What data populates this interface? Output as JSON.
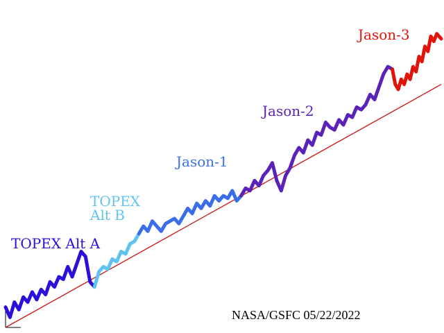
{
  "chart_data": {
    "type": "line",
    "title": "",
    "xlabel": "",
    "ylabel": "",
    "xlim": [
      1993.0,
      2022.4
    ],
    "ylim": [
      -10,
      110
    ],
    "grid": false,
    "legend": "none",
    "credit": "NASA/GSFC  05/22/2022",
    "trend": {
      "name": "",
      "color": "#cc1f1f",
      "x": [
        1993.0,
        2022.4
      ],
      "y": [
        -10,
        86
      ]
    },
    "series": [
      {
        "name": "TOPEX Alt A",
        "color": "#2a10d8",
        "label_lines": [
          "TOPEX Alt A"
        ],
        "x": [
          1993.0,
          1993.3,
          1993.6,
          1993.9,
          1994.2,
          1994.5,
          1994.8,
          1995.1,
          1995.4,
          1995.7,
          1996.0,
          1996.3,
          1996.6,
          1996.9,
          1997.2,
          1997.5,
          1997.8,
          1998.1,
          1998.4,
          1998.7,
          1999.0
        ],
        "y": [
          -2,
          -6,
          0,
          -3,
          2,
          0,
          4,
          1,
          5,
          3,
          8,
          6,
          10,
          9,
          14,
          10,
          15,
          20,
          18,
          8,
          6
        ]
      },
      {
        "name": "TOPEX Alt B",
        "color": "#5fc3f0",
        "label_lines": [
          "TOPEX",
          "Alt B"
        ],
        "x": [
          1999.0,
          1999.3,
          1999.6,
          1999.9,
          2000.2,
          2000.5,
          2000.8,
          2001.1,
          2001.4,
          2001.7,
          2002.0
        ],
        "y": [
          6,
          12,
          14,
          13,
          17,
          16,
          20,
          19,
          23,
          24,
          27
        ]
      },
      {
        "name": "Jason-1",
        "color": "#3a6ee8",
        "label_lines": [
          "Jason-1"
        ],
        "x": [
          2002.0,
          2002.3,
          2002.6,
          2002.9,
          2003.2,
          2003.5,
          2003.8,
          2004.1,
          2004.4,
          2004.7,
          2005.0,
          2005.3,
          2005.6,
          2005.9,
          2006.2,
          2006.5,
          2006.8,
          2007.1,
          2007.4,
          2007.7,
          2008.0,
          2008.3,
          2008.6,
          2008.9
        ],
        "y": [
          27,
          30,
          28,
          32,
          30,
          28,
          31,
          32,
          33,
          31,
          34,
          37,
          35,
          39,
          37,
          40,
          38,
          42,
          40,
          42,
          41,
          44,
          40,
          42
        ]
      },
      {
        "name": "Jason-2",
        "color": "#5a22b8",
        "label_lines": [
          "Jason-2"
        ],
        "x": [
          2008.9,
          2009.2,
          2009.5,
          2009.8,
          2010.1,
          2010.4,
          2010.7,
          2011.0,
          2011.3,
          2011.6,
          2011.9,
          2012.2,
          2012.5,
          2012.8,
          2013.1,
          2013.4,
          2013.7,
          2014.0,
          2014.3,
          2014.6,
          2014.9,
          2015.2,
          2015.5,
          2015.8,
          2016.1,
          2016.4,
          2016.7,
          2017.0,
          2017.3,
          2017.6,
          2017.9,
          2018.2,
          2018.5,
          2018.8,
          2019.1
        ],
        "y": [
          42,
          45,
          44,
          48,
          46,
          50,
          52,
          55,
          48,
          44,
          50,
          53,
          58,
          61,
          59,
          64,
          62,
          67,
          66,
          71,
          69,
          68,
          72,
          70,
          74,
          73,
          77,
          76,
          78,
          82,
          80,
          85,
          90,
          93,
          92
        ]
      },
      {
        "name": "Jason-3",
        "color": "#e0140a",
        "label_lines": [
          "Jason-3"
        ],
        "x": [
          2019.1,
          2019.3,
          2019.5,
          2019.7,
          2019.9,
          2020.1,
          2020.3,
          2020.5,
          2020.7,
          2020.9,
          2021.1,
          2021.3,
          2021.5,
          2021.7,
          2021.9,
          2022.1,
          2022.4
        ],
        "y": [
          92,
          86,
          84,
          88,
          86,
          90,
          88,
          93,
          91,
          97,
          95,
          101,
          99,
          105,
          103,
          106,
          104
        ]
      }
    ]
  }
}
